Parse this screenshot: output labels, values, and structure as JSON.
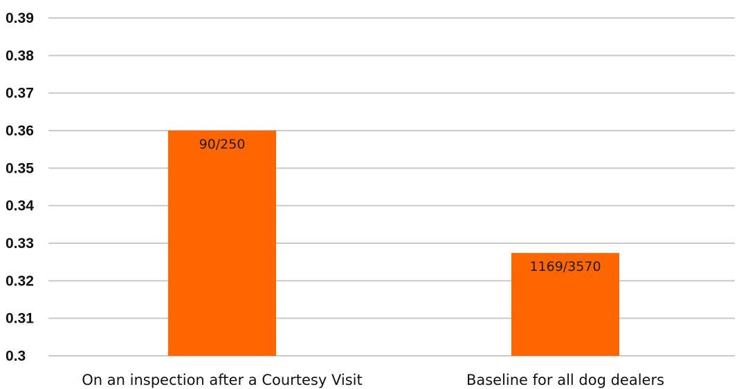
{
  "chart_data": {
    "type": "bar",
    "categories": [
      "On an inspection after a Courtesy Visit",
      "Baseline for all dog dealers"
    ],
    "values": [
      0.36,
      0.3274
    ],
    "data_labels": [
      "90/250",
      "1169/3570"
    ],
    "y_ticks": [
      "0.3",
      "0.31",
      "0.32",
      "0.33",
      "0.34",
      "0.35",
      "0.36",
      "0.37",
      "0.38",
      "0.39"
    ],
    "ylim": [
      0.3,
      0.39
    ],
    "grid": true,
    "bar_color": "#ff6600",
    "grid_color": "#c8c8c8"
  }
}
